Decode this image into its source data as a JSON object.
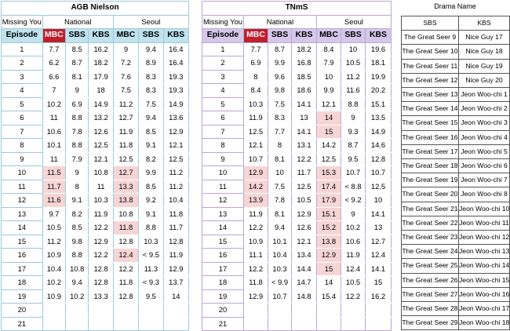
{
  "agb": {
    "title": "AGB Nielson",
    "missing_label": "Missing You",
    "national_label": "National",
    "seoul_label": "Seoul",
    "headers": [
      "Episode",
      "MBC",
      "SBS",
      "KBS",
      "MBC",
      "SBS",
      "KBS"
    ],
    "rows": [
      [
        "1",
        "7.7",
        "8.5",
        "16.2",
        "9",
        "9.4",
        "16.4"
      ],
      [
        "2",
        "6.2",
        "8.7",
        "18.2",
        "7.2",
        "8.9",
        "16.4"
      ],
      [
        "3",
        "6.6",
        "8.1",
        "17.9",
        "7.6",
        "8.3",
        "19.3"
      ],
      [
        "4",
        "7",
        "9",
        "18",
        "7.5",
        "8.3",
        "19.3"
      ],
      [
        "5",
        "10.2",
        "6.9",
        "14.9",
        "11.2",
        "7.5",
        "14.9"
      ],
      [
        "6",
        "11",
        "8.8",
        "13.2",
        "12.7",
        "9.4",
        "13.6"
      ],
      [
        "7",
        "10.6",
        "7.8",
        "12.6",
        "11.9",
        "8.5",
        "12.9"
      ],
      [
        "8",
        "10.1",
        "8.8",
        "12.5",
        "11.8",
        "9.1",
        "12.1"
      ],
      [
        "9",
        "11",
        "7.9",
        "12.1",
        "12.5",
        "8.2",
        "12.5"
      ],
      [
        "10",
        "11.5",
        "9",
        "10.8",
        "12.7",
        "9.9",
        "11.2"
      ],
      [
        "11",
        "11.7",
        "8",
        "11",
        "13.3",
        "8.5",
        "11.2"
      ],
      [
        "12",
        "11.6",
        "9.1",
        "10.3",
        "13.8",
        "9.2",
        "10.4"
      ],
      [
        "13",
        "9.7",
        "8.2",
        "11.9",
        "10.8",
        "9.1",
        "11.8"
      ],
      [
        "14",
        "10.5",
        "8.5",
        "12.2",
        "11.8",
        "8.8",
        "11.7"
      ],
      [
        "15",
        "11.2",
        "9.8",
        "12.9",
        "12.8",
        "10.3",
        "12.8"
      ],
      [
        "16",
        "10.9",
        "8.8",
        "12.2",
        "12.4",
        "< 9.5",
        "11.9"
      ],
      [
        "17",
        "10.4",
        "10.8",
        "12.8",
        "12.2",
        "11.3",
        "12.9"
      ],
      [
        "18",
        "10.2",
        "9.4",
        "12.8",
        "11.8",
        "< 9.3",
        "13.7"
      ],
      [
        "19",
        "10.9",
        "10.2",
        "13.3",
        "12.8",
        "9.5",
        "14"
      ],
      [
        "20",
        "",
        "",
        "",
        "",
        "",
        ""
      ],
      [
        "21",
        "",
        "",
        "",
        "",
        "",
        ""
      ]
    ],
    "highlights": [
      [
        9,
        1
      ],
      [
        10,
        1
      ],
      [
        11,
        1
      ],
      [
        9,
        4
      ],
      [
        10,
        4
      ],
      [
        11,
        4
      ],
      [
        13,
        4
      ],
      [
        15,
        4
      ]
    ]
  },
  "tnms": {
    "title": "TNmS",
    "missing_label": "Missing You",
    "national_label": "National",
    "seoul_label": "Seoul",
    "headers": [
      "Episode",
      "MBC",
      "SBS",
      "KBS",
      "MBC",
      "SBS",
      "KBS"
    ],
    "rows": [
      [
        "1",
        "7.7",
        "8.7",
        "18.2",
        "8.4",
        "10",
        "19.6"
      ],
      [
        "2",
        "6.9",
        "9.9",
        "16.8",
        "7.9",
        "10.5",
        "18.1"
      ],
      [
        "3",
        "8",
        "9.6",
        "18.5",
        "10",
        "11.2",
        "19.9"
      ],
      [
        "4",
        "8.4",
        "9.8",
        "18.6",
        "9.9",
        "11.6",
        "20.2"
      ],
      [
        "5",
        "10.3",
        "7.5",
        "14.1",
        "12.1",
        "8.8",
        "15.1"
      ],
      [
        "6",
        "11.9",
        "8.3",
        "13",
        "14",
        "9",
        "13.5"
      ],
      [
        "7",
        "12.5",
        "7.7",
        "14.1",
        "15",
        "9.3",
        "14.9"
      ],
      [
        "8",
        "12.1",
        "8",
        "13.1",
        "14.2",
        "8.7",
        "14.6"
      ],
      [
        "9",
        "10.7",
        "8.1",
        "12.2",
        "12.5",
        "9.5",
        "12.8"
      ],
      [
        "10",
        "12.9",
        "10",
        "11.7",
        "15.3",
        "10.7",
        "10.7"
      ],
      [
        "11",
        "14.2",
        "7.5",
        "12.5",
        "17.4",
        "< 8.8",
        "12.5"
      ],
      [
        "12",
        "13.9",
        "7.8",
        "10.5",
        "17.9",
        "< 9.2",
        "10"
      ],
      [
        "13",
        "11.9",
        "8.1",
        "12.9",
        "15.1",
        "9",
        "14.1"
      ],
      [
        "14",
        "12.2",
        "9.4",
        "12.6",
        "15.2",
        "10.2",
        "13"
      ],
      [
        "15",
        "10.9",
        "10.1",
        "12.1",
        "13.8",
        "10.6",
        "12.7"
      ],
      [
        "16",
        "11.1",
        "10.4",
        "13.4",
        "12.9",
        "11.9",
        "12.4"
      ],
      [
        "17",
        "12.2",
        "10.3",
        "14.4",
        "15",
        "12.4",
        "14.1"
      ],
      [
        "18",
        "11.8",
        "< 9.9",
        "14.7",
        "14",
        "10.5",
        "15"
      ],
      [
        "19",
        "12.9",
        "10.7",
        "14.8",
        "15.4",
        "12.2",
        "16.2"
      ],
      [
        "20",
        "",
        "",
        "",
        "",
        "",
        ""
      ],
      [
        "21",
        "",
        "",
        "",
        "",
        "",
        ""
      ]
    ],
    "highlights": [
      [
        9,
        1
      ],
      [
        10,
        1
      ],
      [
        11,
        1
      ],
      [
        5,
        4
      ],
      [
        6,
        4
      ],
      [
        9,
        4
      ],
      [
        10,
        4
      ],
      [
        11,
        4
      ],
      [
        12,
        4
      ],
      [
        13,
        4
      ],
      [
        14,
        4
      ],
      [
        15,
        4
      ],
      [
        16,
        4
      ]
    ]
  },
  "drama": {
    "label": "Drama Name",
    "headers": [
      "SBS",
      "KBS"
    ],
    "rows": [
      [
        "The Great Seer 9",
        "Nice Guy 17"
      ],
      [
        "The Great Seer 10",
        "Nice Guy 18"
      ],
      [
        "The Great Seer 11",
        "Nice Guy 19"
      ],
      [
        "The Great Seer 12",
        "Nice Guy 20"
      ],
      [
        "The Great Seer 13",
        "Jeon Woo-chi 1"
      ],
      [
        "The Great Seer 14",
        "Jeon Woo-chi 2"
      ],
      [
        "The Great Seer 15",
        "Jeon Woo-chi 3"
      ],
      [
        "The Great Seer 16",
        "Jeon Woo-chi 4"
      ],
      [
        "The Great Seer 17",
        "Jeon Woo-chi 5"
      ],
      [
        "The Great Seer 18",
        "Jeon Woo-chi 6"
      ],
      [
        "The Great Seer 19",
        "Jeon Woo-chi 7"
      ],
      [
        "The Great Seer 20",
        "Jeon Woo-chi 8"
      ],
      [
        "The Great Seer 21",
        "Jeon Woo-chi 10"
      ],
      [
        "The Great Seer 22",
        "Jeon Woo-chi 11"
      ],
      [
        "The Great Seer 23",
        "Jeon Woo-chi 12"
      ],
      [
        "The Great Seer 24",
        "Jeon Woo-chi 13"
      ],
      [
        "The Great Seer 25",
        "Jeon Woo-chi 14"
      ],
      [
        "The Great Seer 26",
        "Jeon Woo-chi 15"
      ],
      [
        "The Great Seer 27",
        "Jeon Woo-chi 16"
      ],
      [
        "The Great Seer 28",
        "Jeon Woo-chi 17"
      ],
      [
        "The Great Seer 29",
        "Jeon Woo-chi 18"
      ]
    ]
  },
  "colors": {
    "agb_header": "#bfe3ef",
    "tnms_header": "#d5c7ea",
    "mbc_header": "#c0202d",
    "highlight": "#f7d5d5"
  }
}
